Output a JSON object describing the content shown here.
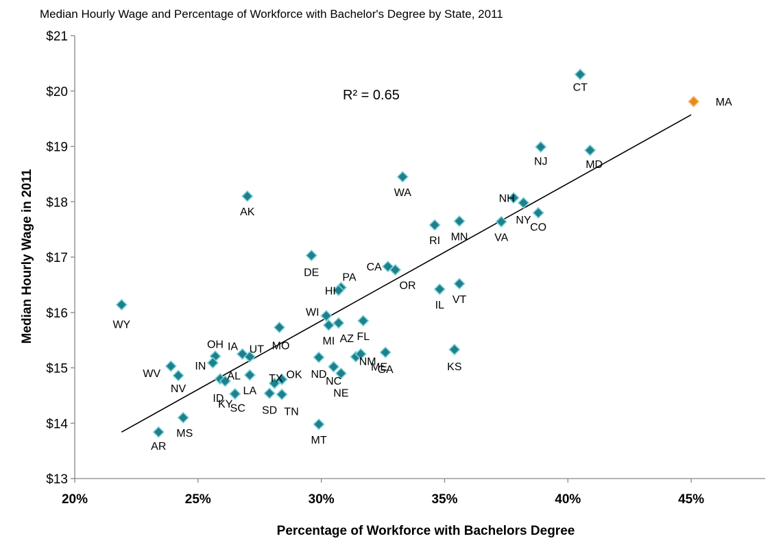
{
  "chart_data": {
    "type": "scatter",
    "title": "Median Hourly Wage and Percentage of Workforce with Bachelor's Degree by State, 2011",
    "xlabel": "Percentage of Workforce with Bachelors Degree",
    "ylabel": "Median Hourly Wage in 2011",
    "xlim": [
      20,
      48
    ],
    "ylim": [
      13,
      21
    ],
    "x_ticks": [
      20,
      25,
      30,
      35,
      40,
      45
    ],
    "x_tick_labels": [
      "20%",
      "25%",
      "30%",
      "35%",
      "40%",
      "45%"
    ],
    "y_ticks": [
      13,
      14,
      15,
      16,
      17,
      18,
      19,
      20,
      21
    ],
    "y_tick_labels": [
      "$13",
      "$14",
      "$15",
      "$16",
      "$17",
      "$18",
      "$19",
      "$20",
      "$21"
    ],
    "grid": false,
    "annotation": "R² = 0.65",
    "trendline": {
      "x": [
        21.9,
        45.0
      ],
      "y": [
        13.84,
        19.57
      ]
    },
    "colors": {
      "default": "#1f7f8c",
      "edge": "#7dd3d9",
      "highlight": "#e8891a",
      "highlight_edge": "#f5c07a"
    },
    "points": [
      {
        "label": "CT",
        "x": 40.5,
        "y": 20.3
      },
      {
        "label": "MA",
        "x": 45.1,
        "y": 19.81,
        "highlight": true
      },
      {
        "label": "NJ",
        "x": 38.9,
        "y": 18.99
      },
      {
        "label": "MD",
        "x": 40.9,
        "y": 18.93
      },
      {
        "label": "WA",
        "x": 33.3,
        "y": 18.45
      },
      {
        "label": "AK",
        "x": 27.0,
        "y": 18.1
      },
      {
        "label": "NH",
        "x": 37.8,
        "y": 18.07
      },
      {
        "label": "NY",
        "x": 38.2,
        "y": 17.98
      },
      {
        "label": "CO",
        "x": 38.8,
        "y": 17.8
      },
      {
        "label": "RI",
        "x": 34.6,
        "y": 17.58
      },
      {
        "label": "MN",
        "x": 35.6,
        "y": 17.65
      },
      {
        "label": "VA",
        "x": 37.3,
        "y": 17.64
      },
      {
        "label": "DE",
        "x": 29.6,
        "y": 17.03
      },
      {
        "label": "CA",
        "x": 32.7,
        "y": 16.83
      },
      {
        "label": "OR",
        "x": 33.0,
        "y": 16.77
      },
      {
        "label": "PA",
        "x": 30.8,
        "y": 16.45
      },
      {
        "label": "HI",
        "x": 30.7,
        "y": 16.4
      },
      {
        "label": "IL",
        "x": 34.8,
        "y": 16.42
      },
      {
        "label": "VT",
        "x": 35.6,
        "y": 16.52
      },
      {
        "label": "WY",
        "x": 21.9,
        "y": 16.14
      },
      {
        "label": "WI",
        "x": 30.2,
        "y": 15.94
      },
      {
        "label": "MI",
        "x": 30.3,
        "y": 15.77
      },
      {
        "label": "AZ",
        "x": 30.7,
        "y": 15.81
      },
      {
        "label": "FL",
        "x": 31.7,
        "y": 15.85
      },
      {
        "label": "MO",
        "x": 28.3,
        "y": 15.73
      },
      {
        "label": "KS",
        "x": 35.4,
        "y": 15.33
      },
      {
        "label": "IA",
        "x": 26.8,
        "y": 15.25
      },
      {
        "label": "UT",
        "x": 27.1,
        "y": 15.2
      },
      {
        "label": "OH",
        "x": 25.7,
        "y": 15.21
      },
      {
        "label": "IN",
        "x": 25.6,
        "y": 15.09
      },
      {
        "label": "ND",
        "x": 29.9,
        "y": 15.19
      },
      {
        "label": "NC",
        "x": 30.5,
        "y": 15.02
      },
      {
        "label": "NE",
        "x": 30.8,
        "y": 14.9
      },
      {
        "label": "ME",
        "x": 31.4,
        "y": 15.2
      },
      {
        "label": "NM",
        "x": 31.6,
        "y": 15.25
      },
      {
        "label": "GA",
        "x": 32.6,
        "y": 15.28
      },
      {
        "label": "WV",
        "x": 23.9,
        "y": 15.03
      },
      {
        "label": "NV",
        "x": 24.2,
        "y": 14.86
      },
      {
        "label": "AL",
        "x": 25.9,
        "y": 14.8
      },
      {
        "label": "ID",
        "x": 26.1,
        "y": 14.76
      },
      {
        "label": "LA",
        "x": 27.1,
        "y": 14.87
      },
      {
        "label": "KY",
        "x": 26.5,
        "y": 14.53
      },
      {
        "label": "SC",
        "x": 26.5,
        "y": 14.53
      },
      {
        "label": "TX",
        "x": 28.1,
        "y": 14.72
      },
      {
        "label": "OK",
        "x": 28.4,
        "y": 14.79
      },
      {
        "label": "SD",
        "x": 27.9,
        "y": 14.54
      },
      {
        "label": "TN",
        "x": 28.4,
        "y": 14.52
      },
      {
        "label": "MS",
        "x": 24.4,
        "y": 14.1
      },
      {
        "label": "AR",
        "x": 23.4,
        "y": 13.84
      },
      {
        "label": "MT",
        "x": 29.9,
        "y": 13.98
      }
    ]
  }
}
